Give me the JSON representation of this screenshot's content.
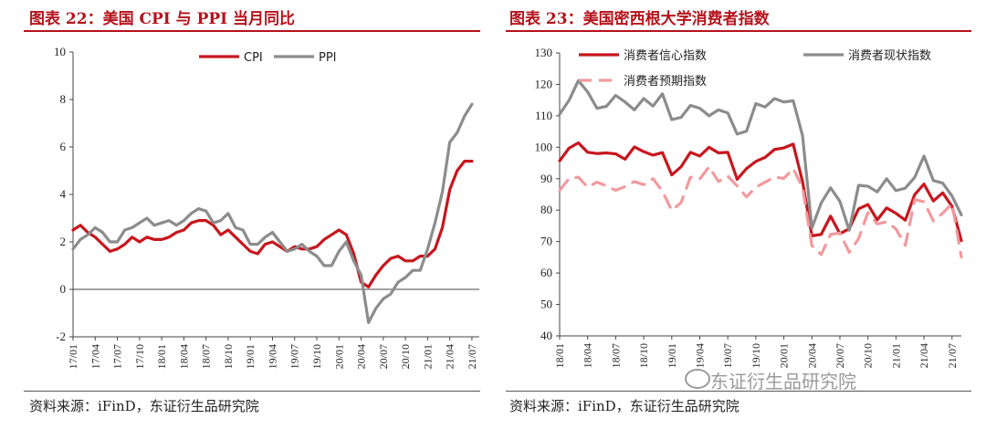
{
  "left": {
    "title": "图表 22：美国 CPI 与 PPI 当月同比",
    "source": "资料来源：iFinD，东证衍生品研究院"
  },
  "right": {
    "title": "图表 23：美国密西根大学消费者指数",
    "source": "资料来源：iFinD，东证衍生品研究院"
  },
  "watermark": "东证衍生品研究院",
  "watermark_icon": "wechat-icon",
  "chart_data": [
    {
      "type": "line",
      "title": "图表 22：美国 CPI 与 PPI 当月同比",
      "ylim": [
        -2,
        10
      ],
      "yticks": [
        -2,
        0,
        2,
        4,
        6,
        8,
        10
      ],
      "xlim": [
        0,
        55
      ],
      "xtick_labels": [
        "17/01",
        "17/04",
        "17/07",
        "17/10",
        "18/01",
        "18/04",
        "18/07",
        "18/10",
        "19/01",
        "19/04",
        "19/07",
        "19/10",
        "20/01",
        "20/04",
        "20/07",
        "20/10",
        "21/01",
        "21/04",
        "21/07"
      ],
      "legend_position": "top-center",
      "grid": false,
      "series": [
        {
          "name": "CPI",
          "color": "#c8161d",
          "dash": "solid",
          "values": [
            2.5,
            2.7,
            2.4,
            2.2,
            1.9,
            1.6,
            1.7,
            1.9,
            2.2,
            2.0,
            2.2,
            2.1,
            2.1,
            2.2,
            2.4,
            2.5,
            2.8,
            2.9,
            2.9,
            2.7,
            2.3,
            2.5,
            2.2,
            1.9,
            1.6,
            1.5,
            1.9,
            2.0,
            1.8,
            1.6,
            1.8,
            1.7,
            1.7,
            1.8,
            2.1,
            2.3,
            2.5,
            2.3,
            1.5,
            0.3,
            0.1,
            0.6,
            1.0,
            1.3,
            1.4,
            1.2,
            1.2,
            1.4,
            1.4,
            1.7,
            2.6,
            4.2,
            5.0,
            5.4,
            5.4
          ]
        },
        {
          "name": "PPI",
          "color": "#8c8c8c",
          "dash": "solid",
          "values": [
            1.7,
            2.1,
            2.3,
            2.6,
            2.4,
            2.0,
            2.0,
            2.5,
            2.6,
            2.8,
            3.0,
            2.7,
            2.8,
            2.9,
            2.7,
            2.9,
            3.2,
            3.4,
            3.3,
            2.8,
            2.9,
            3.2,
            2.6,
            2.5,
            1.9,
            1.9,
            2.2,
            2.4,
            2.0,
            1.6,
            1.7,
            1.9,
            1.6,
            1.4,
            1.0,
            1.0,
            1.6,
            2.0,
            1.2,
            0.6,
            -1.4,
            -0.8,
            -0.4,
            -0.2,
            0.3,
            0.5,
            0.8,
            0.8,
            1.7,
            2.8,
            4.1,
            6.2,
            6.6,
            7.3,
            7.8
          ]
        }
      ]
    },
    {
      "type": "line",
      "title": "图表 23：美国密西根大学消费者指数",
      "ylim": [
        40,
        130
      ],
      "yticks": [
        40,
        50,
        60,
        70,
        80,
        90,
        100,
        110,
        120,
        130
      ],
      "xlim": [
        0,
        43
      ],
      "xtick_labels": [
        "18/01",
        "18/04",
        "18/07",
        "18/10",
        "19/01",
        "19/04",
        "19/07",
        "19/10",
        "20/01",
        "20/04",
        "20/07",
        "20/10",
        "21/01",
        "21/04",
        "21/07"
      ],
      "legend_position": "top",
      "grid": false,
      "series": [
        {
          "name": "消费者信心指数",
          "color": "#c8161d",
          "dash": "solid",
          "values": [
            95.7,
            99.7,
            101.4,
            98.4,
            98.0,
            98.2,
            97.9,
            96.2,
            100.1,
            98.6,
            97.5,
            98.3,
            91.2,
            93.8,
            98.4,
            97.2,
            100.0,
            98.2,
            98.4,
            89.8,
            93.2,
            95.5,
            96.8,
            99.3,
            99.8,
            101.0,
            89.1,
            71.8,
            72.3,
            78.1,
            72.5,
            74.1,
            80.4,
            81.8,
            76.9,
            80.7,
            79.0,
            76.8,
            84.9,
            88.3,
            82.9,
            85.5,
            81.2,
            70.3
          ]
        },
        {
          "name": "消费者现状指数",
          "color": "#8c8c8c",
          "dash": "solid",
          "values": [
            110.5,
            114.9,
            121.2,
            117.6,
            112.4,
            113.0,
            116.5,
            114.4,
            111.9,
            115.5,
            113.1,
            117.0,
            108.8,
            109.5,
            113.3,
            112.4,
            110.0,
            111.9,
            110.9,
            104.2,
            105.1,
            113.9,
            112.8,
            115.5,
            114.4,
            114.8,
            103.7,
            74.3,
            82.3,
            87.1,
            82.8,
            73.6,
            87.9,
            87.6,
            85.8,
            90.0,
            86.2,
            87.0,
            90.4,
            97.2,
            89.4,
            88.6,
            84.5,
            78.5
          ]
        },
        {
          "name": "消费者预期指数",
          "color": "#f19a9e",
          "dash": "dashed",
          "values": [
            86.3,
            90.0,
            90.5,
            87.3,
            88.9,
            87.7,
            86.3,
            87.5,
            89.1,
            88.1,
            90.0,
            86.0,
            79.9,
            82.4,
            90.5,
            89.9,
            93.8,
            89.1,
            90.8,
            87.7,
            84.2,
            87.3,
            88.9,
            90.5,
            90.1,
            93.2,
            87.2,
            68.7,
            65.9,
            72.3,
            72.7,
            66.6,
            70.9,
            79.2,
            75.6,
            76.3,
            74.0,
            68.8,
            83.3,
            82.7,
            76.6,
            79.0,
            82.1,
            65.1
          ]
        }
      ]
    }
  ]
}
